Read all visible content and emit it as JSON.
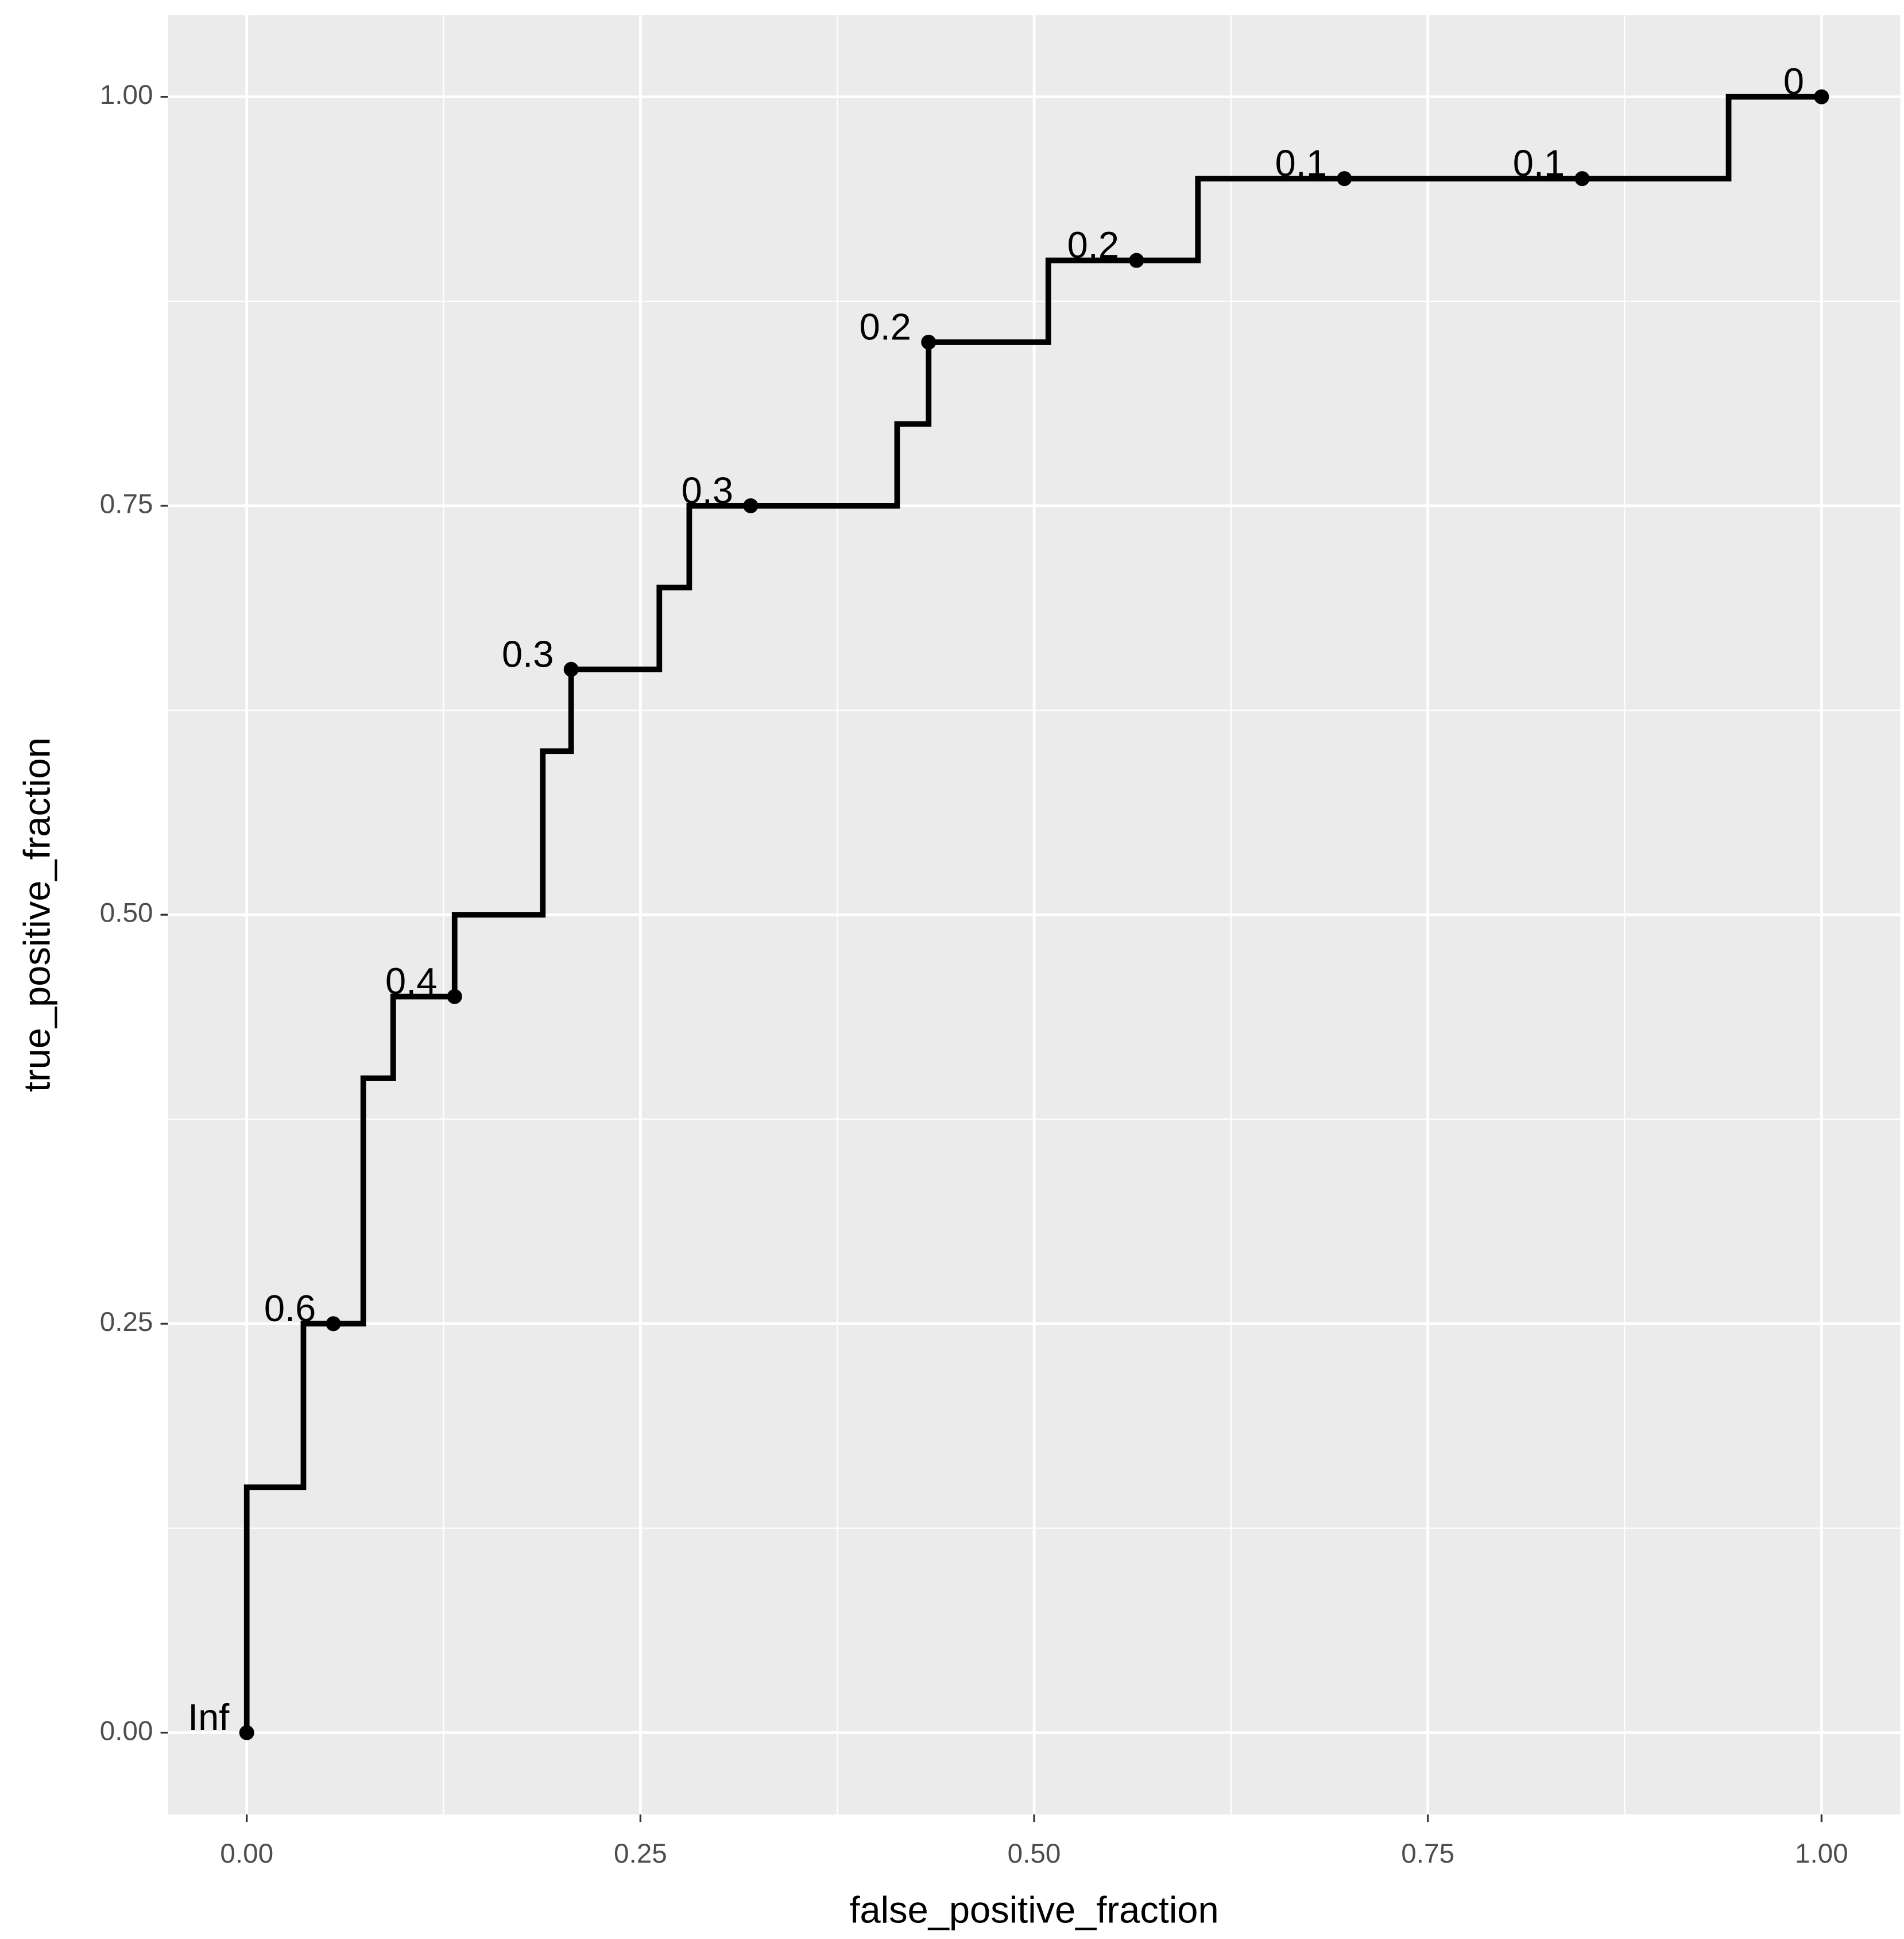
{
  "chart_data": {
    "type": "step",
    "x_label": "false_positive_fraction",
    "y_label": "true_positive_fraction",
    "xlim": [
      -0.05,
      1.05
    ],
    "ylim": [
      -0.05,
      1.05
    ],
    "xticks": [
      {
        "value": 0,
        "label": "0.00"
      },
      {
        "value": 0.25,
        "label": "0.25"
      },
      {
        "value": 0.5,
        "label": "0.50"
      },
      {
        "value": 0.75,
        "label": "0.75"
      },
      {
        "value": 1,
        "label": "1.00"
      }
    ],
    "yticks": [
      {
        "value": 0,
        "label": "0.00"
      },
      {
        "value": 0.25,
        "label": "0.25"
      },
      {
        "value": 0.5,
        "label": "0.50"
      },
      {
        "value": 0.75,
        "label": "0.75"
      },
      {
        "value": 1,
        "label": "1.00"
      }
    ],
    "xminor": [
      0.125,
      0.375,
      0.625,
      0.875
    ],
    "yminor": [
      0.125,
      0.375,
      0.625,
      0.875
    ],
    "grid": true,
    "color": "#000000",
    "line": {
      "x": [
        0,
        0,
        0.036,
        0.036,
        0.074,
        0.074,
        0.093,
        0.093,
        0.132,
        0.132,
        0.188,
        0.188,
        0.206,
        0.206,
        0.262,
        0.262,
        0.281,
        0.281,
        0.413,
        0.413,
        0.433,
        0.433,
        0.509,
        0.509,
        0.604,
        0.604,
        0.941,
        0.941,
        1
      ],
      "y": [
        0,
        0.15,
        0.15,
        0.25,
        0.25,
        0.4,
        0.4,
        0.45,
        0.45,
        0.5,
        0.5,
        0.6,
        0.6,
        0.65,
        0.65,
        0.7,
        0.7,
        0.75,
        0.75,
        0.8,
        0.8,
        0.85,
        0.85,
        0.9,
        0.9,
        0.95,
        0.95,
        1,
        1
      ]
    },
    "points": {
      "x": [
        0,
        0.055,
        0.132,
        0.206,
        0.32,
        0.433,
        0.565,
        0.697,
        0.848,
        1
      ],
      "y": [
        0,
        0.25,
        0.45,
        0.65,
        0.75,
        0.85,
        0.9,
        0.95,
        0.95,
        1
      ],
      "labels": [
        "Inf",
        "0.6",
        "0.4",
        "0.3",
        "0.3",
        "0.2",
        "0.2",
        "0.1",
        "0.1",
        "0"
      ]
    }
  }
}
